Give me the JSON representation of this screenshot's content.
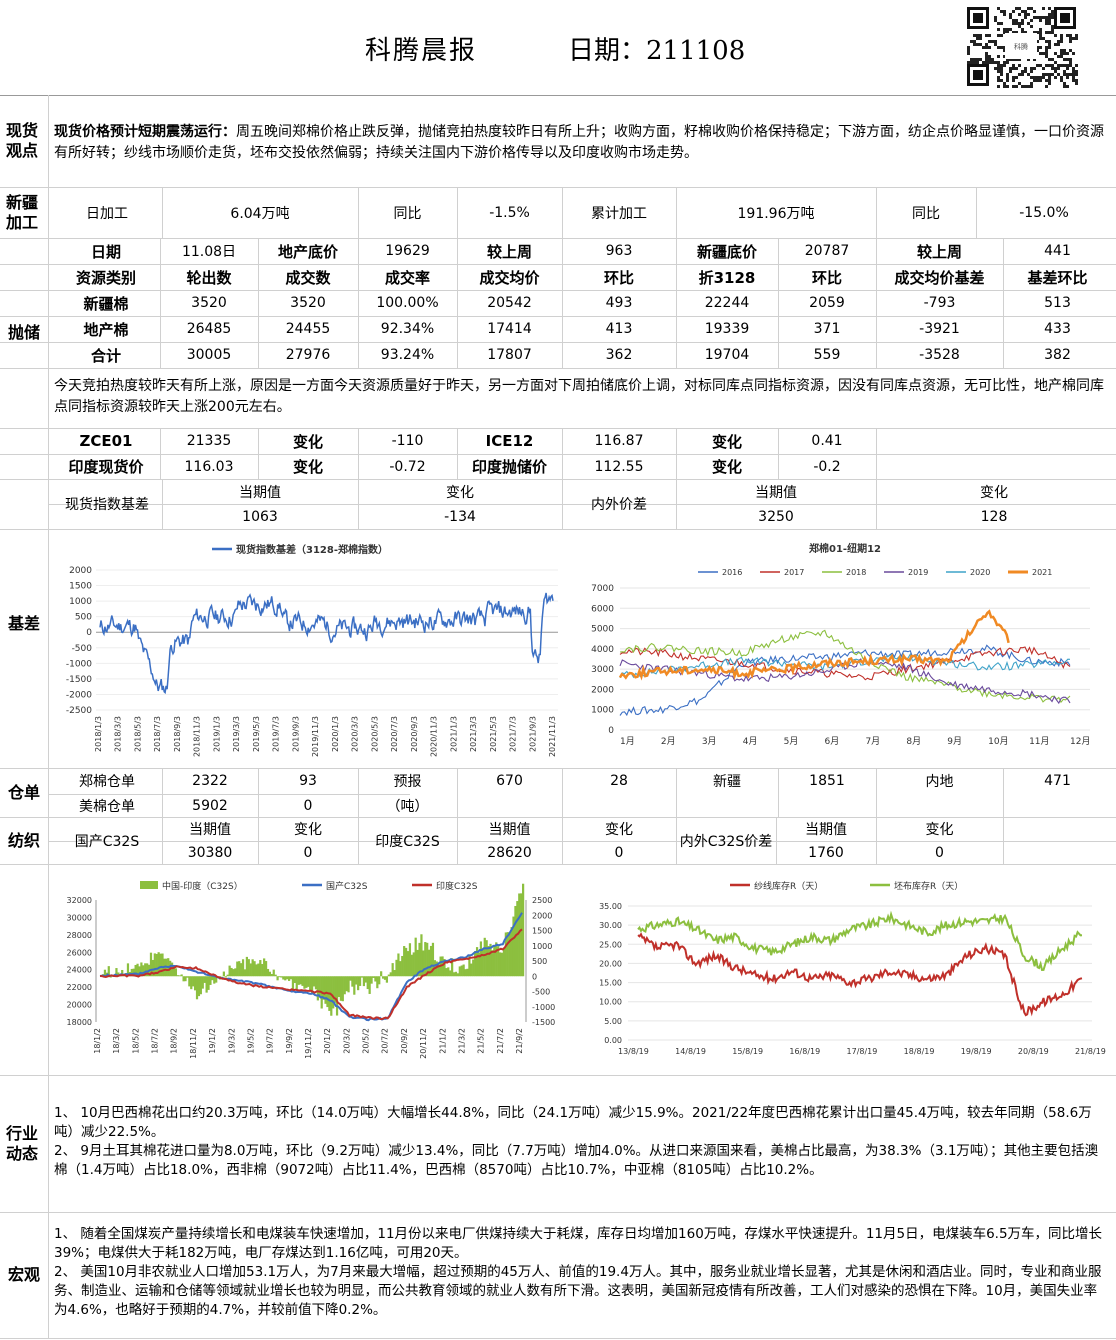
{
  "header": {
    "title": "科腾晨报",
    "date_label": "日期：211108",
    "qr_caption": "科腾"
  },
  "sections": {
    "spot": "现货观点",
    "xinjiang": "新疆加工",
    "auction": "抛储",
    "basis": "基差",
    "warehouse": "仓单",
    "spinning": "纺织",
    "industry": "行业动态",
    "macro": "宏观"
  },
  "spot": {
    "lead": "现货价格预计短期震荡运行：",
    "text": "周五晚间郑棉价格止跌反弹，抛储竞拍热度较昨日有所上升；收购方面，籽棉收购价格保持稳定；下游方面，纺企点价略显谨慎，一口价资源有所好转；纱线市场顺价走货，坯布交投依然偏弱；持续关注国内下游价格传导以及印度收购市场走势。"
  },
  "xinjiang": {
    "row": [
      "日加工",
      "6.04万吨",
      "同比",
      "-1.5%",
      "累计加工",
      "191.96万吨",
      "同比",
      "-15.0%"
    ]
  },
  "auction": {
    "row1": [
      "日期",
      "11.08日",
      "地产底价",
      "19629",
      "较上周",
      "963",
      "新疆底价",
      "20787",
      "较上周",
      "441"
    ],
    "header": [
      "资源类别",
      "轮出数",
      "成交数",
      "成交率",
      "成交均价",
      "环比",
      "折3128",
      "环比",
      "成交均价基差",
      "基差环比"
    ],
    "rows": [
      [
        "新疆棉",
        "3520",
        "3520",
        "100.00%",
        "20542",
        "493",
        "22244",
        "2059",
        "-793",
        "513"
      ],
      [
        "地产棉",
        "26485",
        "24455",
        "92.34%",
        "17414",
        "413",
        "19339",
        "371",
        "-3921",
        "433"
      ],
      [
        "合计",
        "30005",
        "27976",
        "93.24%",
        "17807",
        "362",
        "19704",
        "559",
        "-3528",
        "382"
      ]
    ],
    "note": "今天竞拍热度较昨天有所上涨，原因是一方面今天资源质量好于昨天，另一方面对下周拍储底价上调，对标同库点同指标资源，因没有同库点资源，无可比性，地产棉同库点同指标资源较昨天上涨200元左右。"
  },
  "futures": {
    "r1": [
      "ZCE01",
      "21335",
      "变化",
      "-110",
      "ICE12",
      "116.87",
      "变化",
      "0.41"
    ],
    "r2": [
      "印度现货价",
      "116.03",
      "变化",
      "-0.72",
      "印度抛储价",
      "112.55",
      "变化",
      "-0.2"
    ]
  },
  "basis": {
    "label": "现货指数基差",
    "cur": "当期值",
    "chg": "变化",
    "v1": "1063",
    "v2": "-134",
    "label2": "内外价差",
    "v3": "3250",
    "v4": "128"
  },
  "chart1": {
    "title": "现货指数基差（3128-郑棉指数）",
    "yticks": [
      "2000",
      "1500",
      "1000",
      "500",
      "0",
      "-500",
      "-1000",
      "-1500",
      "-2000",
      "-2500"
    ],
    "xticks": [
      "2018/1/3",
      "2018/3/3",
      "2018/5/3",
      "2018/7/3",
      "2018/9/3",
      "2018/11/3",
      "2019/1/3",
      "2019/3/3",
      "2019/5/3",
      "2019/7/3",
      "2019/9/3",
      "2019/11/3",
      "2020/1/3",
      "2020/3/3",
      "2020/5/3",
      "2020/7/3",
      "2020/9/3",
      "2020/11/3",
      "2021/1/3",
      "2021/3/3",
      "2021/5/3",
      "2021/7/3",
      "2021/9/3",
      "2021/11/3"
    ]
  },
  "chart2": {
    "title": "郑棉01-纽期12",
    "legend": [
      "2016",
      "2017",
      "2018",
      "2019",
      "2020",
      "2021"
    ],
    "yticks": [
      "7000",
      "6000",
      "5000",
      "4000",
      "3000",
      "2000",
      "1000",
      "0"
    ],
    "xticks": [
      "1月",
      "2月",
      "3月",
      "4月",
      "5月",
      "6月",
      "7月",
      "8月",
      "9月",
      "10月",
      "11月",
      "12月"
    ]
  },
  "warehouse": {
    "r1": [
      "郑棉仓单",
      "2322",
      "93",
      "预报",
      "670",
      "28",
      "新疆",
      "1851",
      "内地",
      "471"
    ],
    "r2": [
      "美棉仓单",
      "5902",
      "0",
      "（吨）"
    ]
  },
  "spinning": {
    "a": "国产C32S",
    "cur": "当期值",
    "chg": "变化",
    "v1": "30380",
    "v2": "0",
    "b": "印度C32S",
    "v3": "28620",
    "v4": "0",
    "c": "内外C32S价差",
    "v5": "1760",
    "v6": "0"
  },
  "chart3": {
    "legend": [
      "中国-印度（C32S）",
      "国产C32S",
      "印度C32S"
    ],
    "yleft": [
      "32000",
      "30000",
      "28000",
      "26000",
      "24000",
      "22000",
      "20000",
      "18000"
    ],
    "yright": [
      "2500",
      "2000",
      "1500",
      "1000",
      "500",
      "0",
      "-500",
      "-1000",
      "-1500"
    ],
    "xticks": [
      "18/1/2",
      "18/3/2",
      "18/5/2",
      "18/7/2",
      "18/9/2",
      "18/11/2",
      "19/1/2",
      "19/3/2",
      "19/5/2",
      "19/7/2",
      "19/9/2",
      "19/11/2",
      "20/1/2",
      "20/3/2",
      "20/5/2",
      "20/7/2",
      "20/9/2",
      "20/11/2",
      "21/1/2",
      "21/3/2",
      "21/5/2",
      "21/7/2",
      "21/9/2"
    ]
  },
  "chart4": {
    "legend": [
      "纱线库存R（天）",
      "坯布库存R（天）"
    ],
    "yticks": [
      "35.00",
      "30.00",
      "25.00",
      "20.00",
      "15.00",
      "10.00",
      "5.00",
      "0.00"
    ],
    "xticks": [
      "13/8/19",
      "14/8/19",
      "15/8/19",
      "16/8/19",
      "17/8/19",
      "18/8/19",
      "19/8/19",
      "20/8/19",
      "21/8/19"
    ]
  },
  "industry": [
    "1、 10月巴西棉花出口约20.3万吨，环比（14.0万吨）大幅增长44.8%，同比（24.1万吨）减少15.9%。2021/22年度巴西棉花累计出口量45.4万吨，较去年同期（58.6万吨）减少22.5%。",
    "2、 9月土耳其棉花进口量为8.0万吨，环比（9.2万吨）减少13.4%，同比（7.7万吨）增加4.0%。从进口来源国来看，美棉占比最高，为38.3%（3.1万吨）；其他主要包括澳棉（1.4万吨）占比18.0%，西非棉（9072吨）占比11.4%，巴西棉（8570吨）占比10.7%，中亚棉（8105吨）占比10.2%。"
  ],
  "macro": [
    "1、 随着全国煤炭产量持续增长和电煤装车快速增加，11月份以来电厂供煤持续大于耗煤，库存日均增加160万吨，存煤水平快速提升。11月5日，电煤装车6.5万车，同比增长39%；电煤供大于耗182万吨，电厂存煤达到1.16亿吨，可用20天。",
    "2、 美国10月非农就业人口增加53.1万人，为7月来最大增幅，超过预期的45万人、前值的19.4万人。其中，服务业就业增长显著，尤其是休闲和酒店业。同时，专业和商业服务、制造业、运输和仓储等领域就业增长也较为明显，而公共教育领域的就业人数有所下滑。这表明，美国新冠疫情有所改善，工人们对感染的恐惧在下降。10月，美国失业率为4.6%，也略好于预期的4.7%，并较前值下降0.2%。"
  ],
  "colors": {
    "blue": "#3b6fc4",
    "red": "#c0302a",
    "green": "#8cbf3f",
    "orange": "#f08a24",
    "grid": "#d9d9d9"
  }
}
